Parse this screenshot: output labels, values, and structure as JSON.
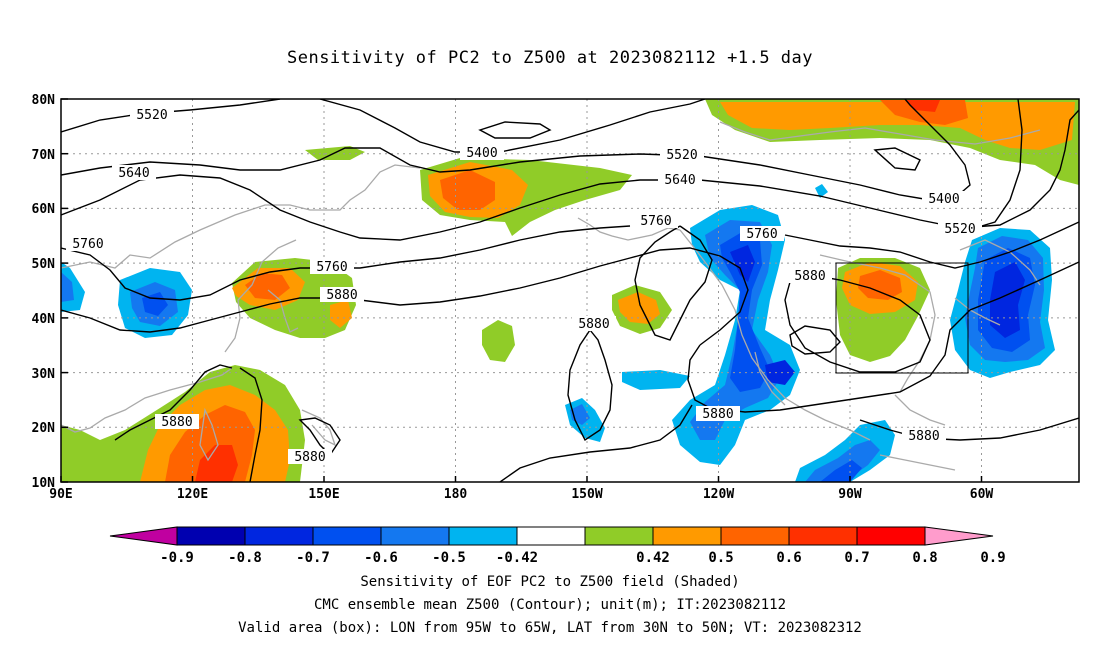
{
  "title": "Sensitivity of PC2 to Z500 at 2023082112 +1.5 day",
  "axes": {
    "lat_labels": [
      "80N",
      "70N",
      "60N",
      "50N",
      "40N",
      "30N",
      "20N",
      "10N"
    ],
    "lon_labels": [
      "90E",
      "120E",
      "150E",
      "180",
      "150W",
      "120W",
      "90W",
      "60W"
    ]
  },
  "contour_labels": {
    "c5520a": "5520",
    "c5400a": "5400",
    "c5520b": "5520",
    "c5640a": "5640",
    "c5640b": "5640",
    "c5400b": "5400",
    "c5520c": "5520",
    "c5760a": "5760",
    "c5760b": "5760",
    "c5760c": "5760",
    "c5760d": "5760",
    "c5880a": "5880",
    "c5880b": "5880",
    "c5880c": "5880",
    "c5880d": "5880",
    "c5880e": "5880",
    "c5880f": "5880",
    "c5880g": "5880"
  },
  "colorbar": {
    "labels": [
      "-0.9",
      "-0.8",
      "-0.7",
      "-0.6",
      "-0.5",
      "-0.42",
      "0.42",
      "0.5",
      "0.6",
      "0.7",
      "0.8",
      "0.9"
    ],
    "colors": [
      "#c000a0",
      "#0000b0",
      "#0026e0",
      "#0050f0",
      "#1478f0",
      "#00b4f0",
      "#ffffff",
      "#90cc28",
      "#ff9a00",
      "#ff6400",
      "#ff3000",
      "#ff0000",
      "#ff9ccc"
    ]
  },
  "captions": {
    "line1": "Sensitivity of EOF PC2 to Z500 field (Shaded)",
    "line2": "CMC ensemble mean Z500 (Contour); unit(m); IT:2023082112",
    "line3": "Valid area (box): LON from 95W to 65W, LAT from 30N to 50N; VT: 2023082312"
  }
}
